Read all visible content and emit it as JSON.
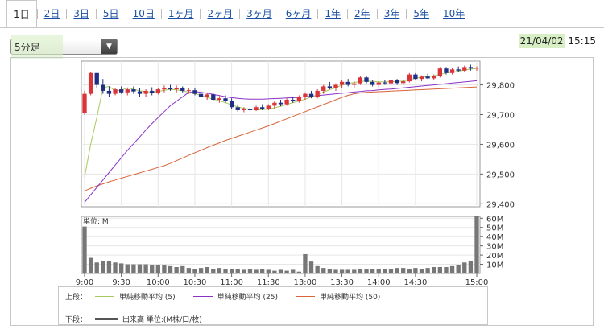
{
  "tabs": [
    {
      "label": "1日",
      "active": true
    },
    {
      "label": "2日"
    },
    {
      "label": "3日"
    },
    {
      "label": "5日"
    },
    {
      "label": "10日"
    },
    {
      "label": "1ヶ月"
    },
    {
      "label": "2ヶ月"
    },
    {
      "label": "3ヶ月"
    },
    {
      "label": "6ヶ月"
    },
    {
      "label": "1年"
    },
    {
      "label": "2年"
    },
    {
      "label": "3年"
    },
    {
      "label": "5年"
    },
    {
      "label": "10年"
    }
  ],
  "interval_select": {
    "value": "5分足",
    "icon": "chevron-down-icon"
  },
  "timestamp": {
    "date": "21/04/02",
    "time": "15:15"
  },
  "colors": {
    "up": "#d9343a",
    "down": "#1f2f86",
    "ma5": "#a6c95a",
    "ma25": "#8a32c8",
    "ma50": "#d9643a",
    "volume": "#777777",
    "grid": "#e6e6e6"
  },
  "legend": {
    "upper_label": "上段：",
    "lower_label": "下段：",
    "ma5": "単純移動平均 (5)",
    "ma25": "単純移動平均 (25)",
    "ma50": "単純移動平均 (50)",
    "volume": "出来高 単位:(M株/口/枚)"
  },
  "chart_data": [
    {
      "type": "candlestick",
      "y_ticks": [
        "29,800",
        "29,700",
        "29,600",
        "29,500",
        "29,400"
      ],
      "ylim": [
        29390,
        29880
      ],
      "x_tick_labels": [
        "9:00",
        "9:30",
        "10:00",
        "10:30",
        "11:00",
        "11:30",
        "13:00",
        "13:30",
        "14:00",
        "14:30",
        "15:00"
      ],
      "candles": [
        [
          29705,
          29780,
          29700,
          29770
        ],
        [
          29770,
          29845,
          29765,
          29840
        ],
        [
          29840,
          29840,
          29790,
          29800
        ],
        [
          29800,
          29820,
          29770,
          29780
        ],
        [
          29780,
          29795,
          29760,
          29770
        ],
        [
          29770,
          29790,
          29765,
          29785
        ],
        [
          29785,
          29795,
          29770,
          29775
        ],
        [
          29775,
          29790,
          29765,
          29785
        ],
        [
          29785,
          29795,
          29770,
          29778
        ],
        [
          29778,
          29790,
          29760,
          29770
        ],
        [
          29770,
          29785,
          29760,
          29780
        ],
        [
          29780,
          29792,
          29765,
          29772
        ],
        [
          29772,
          29790,
          29768,
          29785
        ],
        [
          29785,
          29798,
          29775,
          29790
        ],
        [
          29790,
          29800,
          29780,
          29785
        ],
        [
          29785,
          29798,
          29775,
          29790
        ],
        [
          29790,
          29795,
          29775,
          29780
        ],
        [
          29780,
          29788,
          29770,
          29782
        ],
        [
          29782,
          29790,
          29765,
          29770
        ],
        [
          29770,
          29780,
          29755,
          29760
        ],
        [
          29760,
          29775,
          29750,
          29768
        ],
        [
          29768,
          29772,
          29745,
          29750
        ],
        [
          29750,
          29762,
          29740,
          29755
        ],
        [
          29755,
          29765,
          29740,
          29745
        ],
        [
          29745,
          29755,
          29720,
          29725
        ],
        [
          29725,
          29735,
          29710,
          29715
        ],
        [
          29715,
          29725,
          29708,
          29720
        ],
        [
          29720,
          29728,
          29710,
          29715
        ],
        [
          29715,
          29730,
          29712,
          29725
        ],
        [
          29725,
          29735,
          29715,
          29720
        ],
        [
          29720,
          29735,
          29715,
          29730
        ],
        [
          29730,
          29745,
          29720,
          29740
        ],
        [
          29740,
          29750,
          29728,
          29735
        ],
        [
          29735,
          29755,
          29730,
          29750
        ],
        [
          29750,
          29760,
          29740,
          29745
        ],
        [
          29745,
          29765,
          29740,
          29760
        ],
        [
          29760,
          29775,
          29750,
          29770
        ],
        [
          29770,
          29780,
          29755,
          29760
        ],
        [
          29760,
          29785,
          29755,
          29780
        ],
        [
          29780,
          29800,
          29770,
          29795
        ],
        [
          29795,
          29810,
          29785,
          29790
        ],
        [
          29790,
          29805,
          29780,
          29800
        ],
        [
          29800,
          29815,
          29790,
          29810
        ],
        [
          29810,
          29820,
          29795,
          29800
        ],
        [
          29800,
          29812,
          29790,
          29805
        ],
        [
          29805,
          29830,
          29800,
          29825
        ],
        [
          29825,
          29830,
          29805,
          29810
        ],
        [
          29810,
          29815,
          29795,
          29800
        ],
        [
          29800,
          29812,
          29792,
          29808
        ],
        [
          29808,
          29815,
          29800,
          29805
        ],
        [
          29805,
          29820,
          29798,
          29815
        ],
        [
          29815,
          29820,
          29800,
          29806
        ],
        [
          29806,
          29818,
          29800,
          29812
        ],
        [
          29812,
          29840,
          29808,
          29835
        ],
        [
          29835,
          29840,
          29815,
          29820
        ],
        [
          29820,
          29832,
          29812,
          29828
        ],
        [
          29828,
          29838,
          29820,
          29822
        ],
        [
          29822,
          29835,
          29818,
          29830
        ],
        [
          29830,
          29860,
          29825,
          29855
        ],
        [
          29855,
          29860,
          29835,
          29840
        ],
        [
          29840,
          29858,
          29835,
          29852
        ],
        [
          29852,
          29862,
          29845,
          29848
        ],
        [
          29848,
          29865,
          29845,
          29860
        ],
        [
          29860,
          29868,
          29848,
          29855
        ],
        [
          29855,
          29862,
          29848,
          29858
        ]
      ],
      "ma5": [
        29490,
        29600,
        29690,
        29790,
        29795,
        29780,
        29782,
        29790,
        29785,
        29780,
        29778,
        29775,
        29778,
        29782,
        29785,
        29783,
        29780,
        29775,
        29770,
        29765,
        29758,
        29752,
        29747,
        29740,
        29733,
        29726,
        29721,
        29718,
        29717,
        29717,
        29719,
        29723,
        29728,
        29734,
        29740,
        29746,
        29752,
        29759,
        29767,
        29776,
        29784,
        29791,
        29799,
        29805,
        29808,
        29812,
        29813,
        29812,
        29810,
        29810,
        29811,
        29811,
        29813,
        29818,
        29822,
        29826,
        29828,
        29830,
        29836,
        29840,
        29843,
        29846,
        29850,
        29853,
        29856
      ],
      "ma25": [
        29405,
        29430,
        29455,
        29480,
        29505,
        29530,
        29555,
        29580,
        29602,
        29625,
        29648,
        29670,
        29690,
        29710,
        29730,
        29745,
        29760,
        29775,
        29778,
        29775,
        29772,
        29768,
        29764,
        29760,
        29757,
        29755,
        29753,
        29752,
        29752,
        29752,
        29753,
        29754,
        29755,
        29756,
        29757,
        29758,
        29760,
        29762,
        29764,
        29766,
        29768,
        29770,
        29772,
        29774,
        29776,
        29778,
        29780,
        29781,
        29783,
        29785,
        29786,
        29788,
        29790,
        29792,
        29794,
        29796,
        29798,
        29800,
        29802,
        29804,
        29806,
        29808,
        29810,
        29812,
        29814
      ],
      "ma50": [
        29443,
        29452,
        29460,
        29467,
        29474,
        29480,
        29486,
        29492,
        29498,
        29504,
        29510,
        29516,
        29522,
        29528,
        29536,
        29545,
        29554,
        29563,
        29572,
        29580,
        29589,
        29597,
        29605,
        29613,
        29620,
        29627,
        29634,
        29641,
        29648,
        29655,
        29662,
        29670,
        29678,
        29686,
        29694,
        29702,
        29710,
        29718,
        29726,
        29734,
        29742,
        29750,
        29758,
        29765,
        29770,
        29773,
        29775,
        29776,
        29777,
        29778,
        29779,
        29780,
        29781,
        29782,
        29783,
        29784,
        29785,
        29786,
        29787,
        29788,
        29789,
        29790,
        29791,
        29792,
        29793
      ]
    },
    {
      "type": "bar",
      "title": "単位: M",
      "y_ticks": [
        "60M",
        "50M",
        "40M",
        "30M",
        "20M",
        "10M"
      ],
      "ylim": [
        0,
        62
      ],
      "values": [
        51,
        17,
        12,
        14,
        14,
        12,
        11,
        10,
        10,
        10,
        10,
        9,
        9,
        9,
        8,
        7,
        8,
        6,
        5,
        6,
        7,
        5,
        6,
        5,
        5,
        5,
        4,
        5,
        4,
        5,
        4,
        3,
        4,
        3,
        4,
        2,
        21,
        13,
        8,
        6,
        5,
        4,
        4,
        4,
        4,
        5,
        5,
        5,
        5,
        5,
        5,
        6,
        6,
        5,
        6,
        5,
        6,
        7,
        7,
        7,
        8,
        9,
        12,
        14,
        62
      ]
    }
  ]
}
